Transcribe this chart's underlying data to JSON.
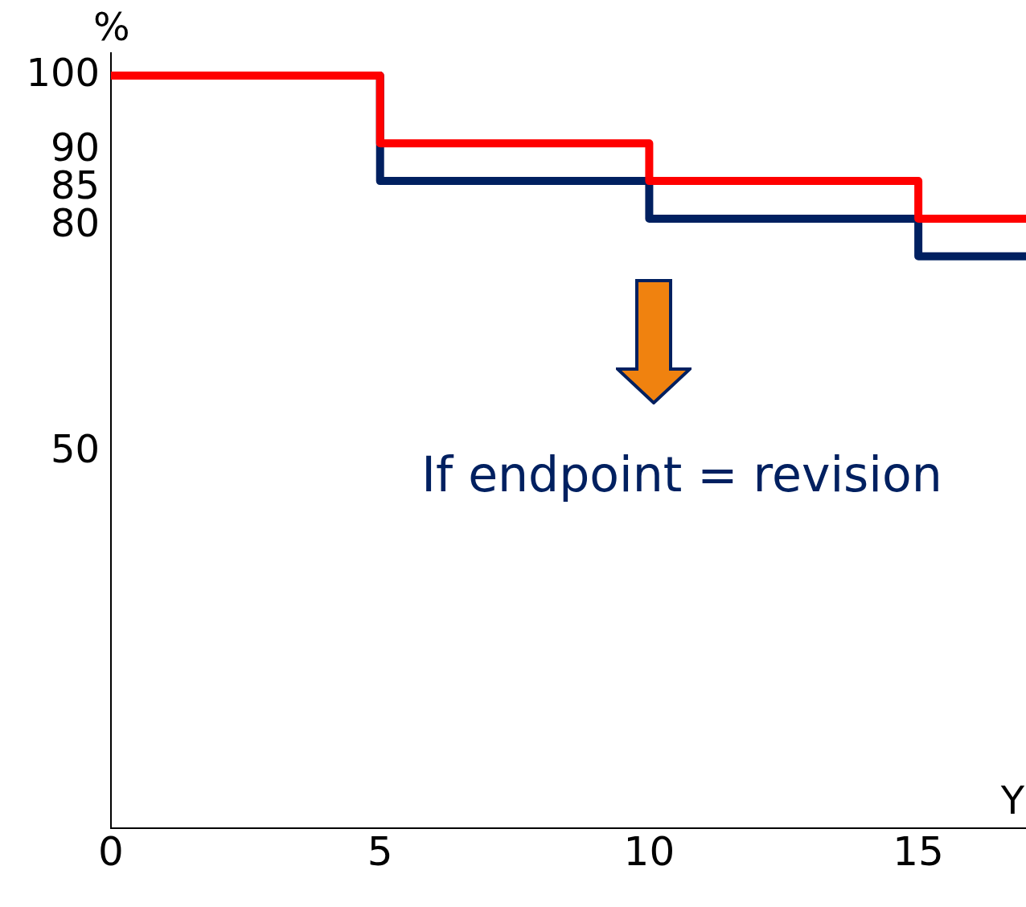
{
  "chart_data": {
    "type": "step",
    "xlabel": "Y",
    "ylabel": "%",
    "x": [
      0,
      5,
      10,
      15,
      17
    ],
    "series": [
      {
        "color": "#ff0000",
        "values": [
          100,
          91,
          86,
          81,
          81
        ]
      },
      {
        "color": "#002060",
        "values": [
          100,
          86,
          81,
          76,
          76
        ]
      }
    ],
    "xlim": [
      0,
      17
    ],
    "xticks": [
      0,
      5,
      10,
      15
    ],
    "ylim": [
      0,
      103
    ],
    "yticks": [
      50,
      80,
      85,
      90,
      100
    ],
    "annotations": [
      "If endpoint = revision"
    ],
    "grid": false,
    "legend": false,
    "marker": "none",
    "line_style": "solid"
  }
}
